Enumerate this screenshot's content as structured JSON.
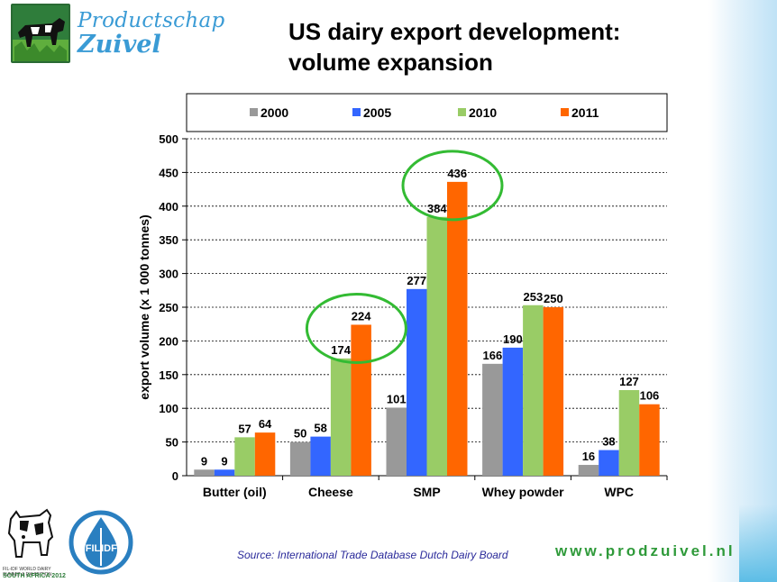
{
  "header": {
    "logo_line1": "Productschap",
    "logo_line2": "Zuivel",
    "title_line1": "US dairy export development:",
    "title_line2": "volume expansion"
  },
  "chart_data": {
    "type": "bar",
    "categories": [
      "Butter (oil)",
      "Cheese",
      "SMP",
      "Whey powder",
      "WPC"
    ],
    "series": [
      {
        "name": "2000",
        "color": "#999999",
        "values": [
          9,
          50,
          101,
          166,
          16
        ]
      },
      {
        "name": "2005",
        "color": "#3366ff",
        "values": [
          9,
          58,
          277,
          190,
          38
        ]
      },
      {
        "name": "2010",
        "color": "#99cc66",
        "values": [
          57,
          174,
          384,
          253,
          127
        ]
      },
      {
        "name": "2011",
        "color": "#ff6600",
        "values": [
          64,
          224,
          436,
          250,
          106
        ]
      }
    ],
    "ylabel": "export volume (x 1 000 tonnes)",
    "ylim": [
      0,
      500
    ],
    "yticks": [
      0,
      50,
      100,
      150,
      200,
      250,
      300,
      350,
      400,
      450,
      500
    ],
    "grid": "horizontal-dashed",
    "legend_position": "top",
    "highlights": [
      {
        "category": "Cheese",
        "series": [
          "2010",
          "2011"
        ],
        "color": "#33bb33"
      },
      {
        "category": "SMP",
        "series": [
          "2010",
          "2011"
        ],
        "color": "#33bb33"
      }
    ]
  },
  "footer": {
    "source": "Source: International Trade Database Dutch Dairy Board",
    "website": "www.prodzuivel.nl",
    "event_caption": "FIL-IDF WORLD DAIRY SUMMIT & EXHIBITION",
    "event_location": "SOUTH AFRICA 2012",
    "fil_left": "FIL",
    "fil_right": "IDF"
  }
}
